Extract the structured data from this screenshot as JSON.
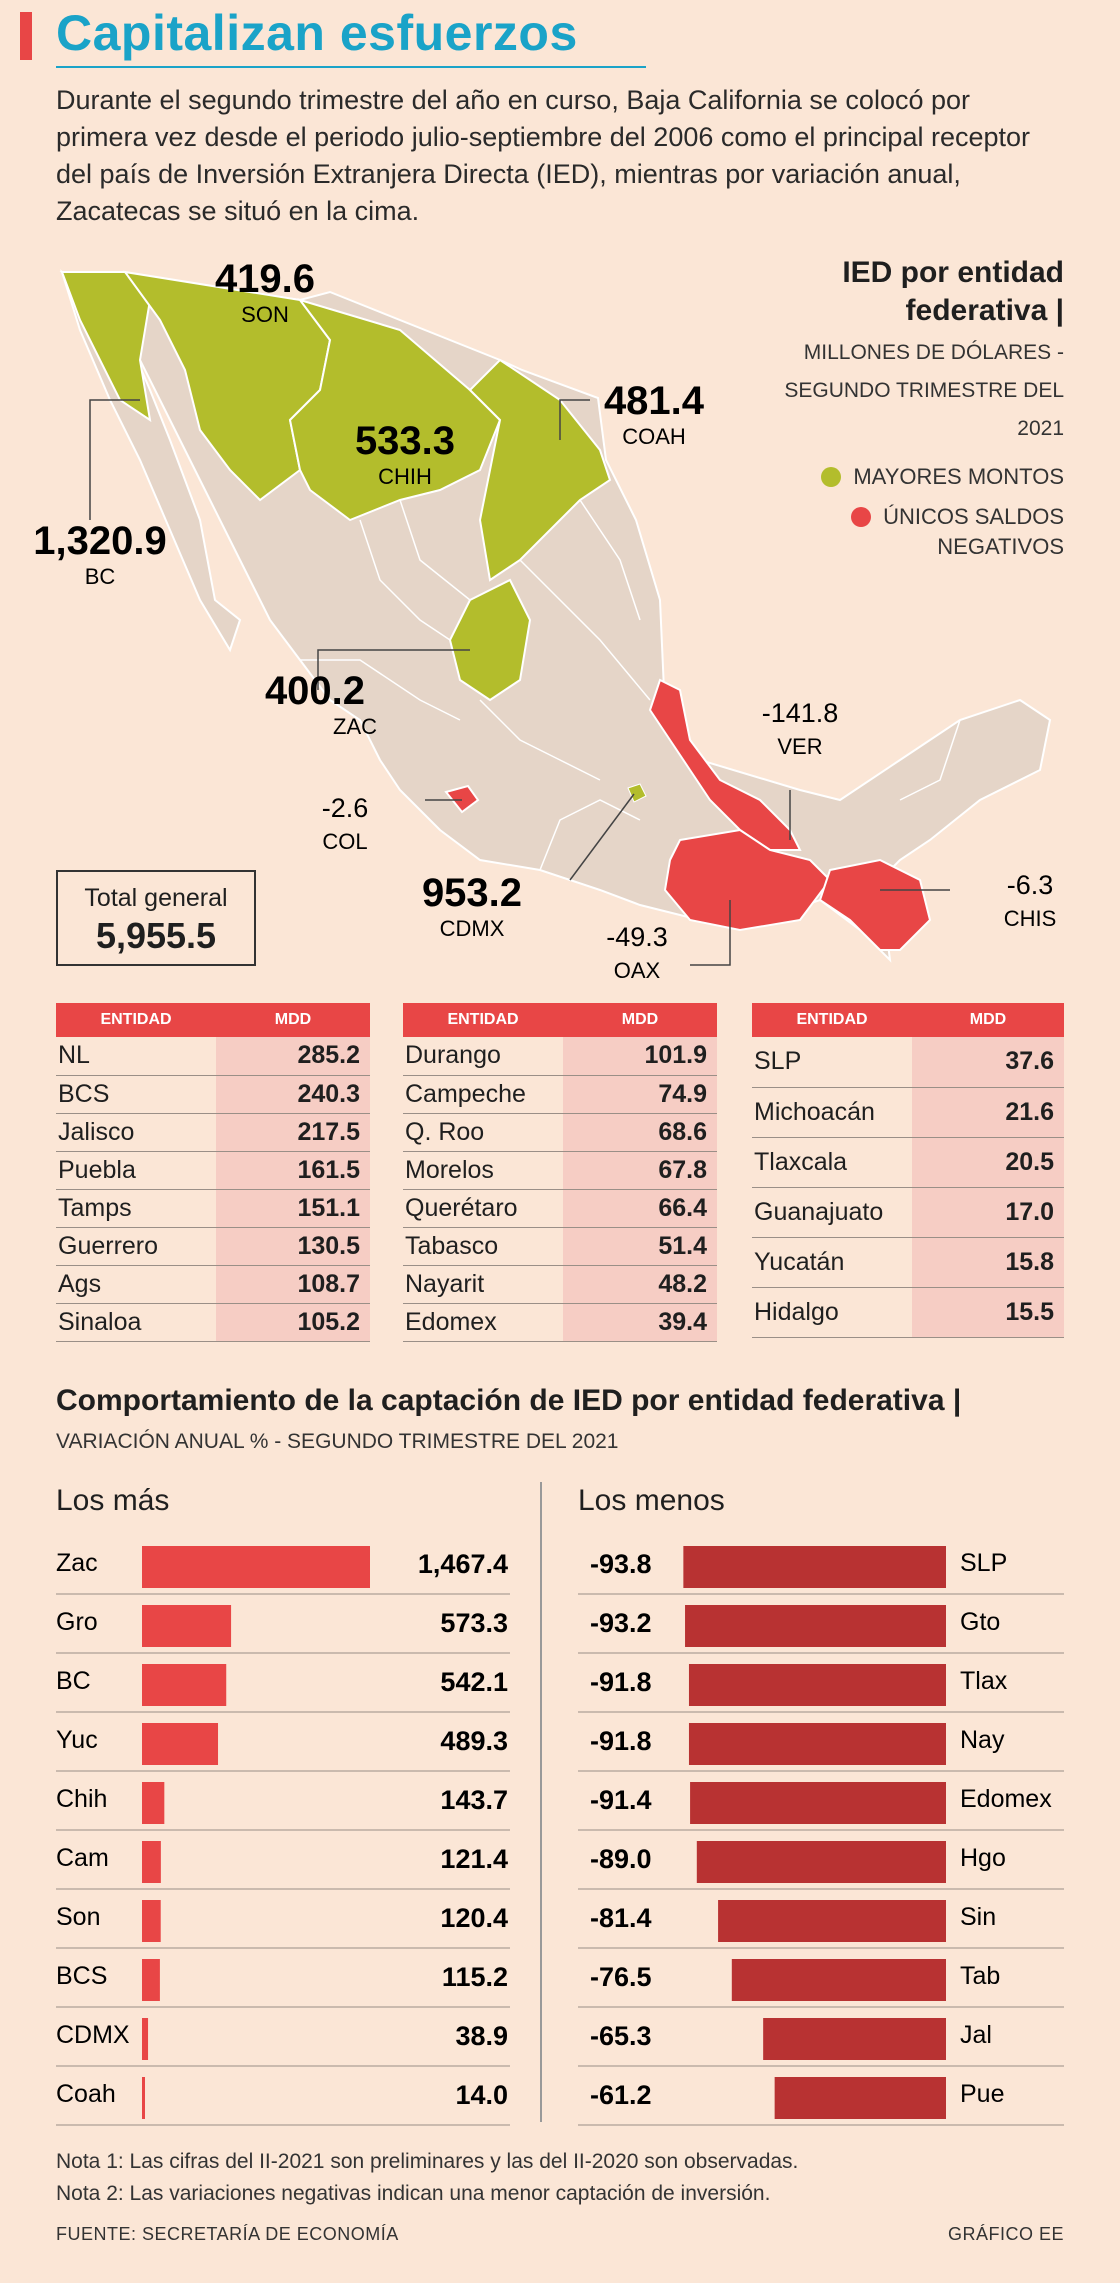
{
  "header": {
    "title": "Capitalizan esfuerzos",
    "intro": "Durante el segundo trimestre del año en curso, Baja California se colocó por primera vez desde el periodo julio-septiembre del 2006 como el principal receptor del país de Inversión Extranjera Directa (IED), mientras por variación anual, Zacatecas se situó en la cima."
  },
  "colors": {
    "accent": "#1aa3c8",
    "green": "#b3bd2c",
    "red": "#e84646",
    "land": "#e5d5c8",
    "dark_red": "#b83232"
  },
  "map": {
    "legend_title": "IED por entidad federativa |",
    "legend_sub": "MILLONES DE DÓLARES - SEGUNDO TRIMESTRE DEL 2021",
    "legend_green": "MAYORES MONTOS",
    "legend_red": "ÚNICOS SALDOS NEGATIVOS",
    "labels": [
      {
        "value": "419.6",
        "state": "SON"
      },
      {
        "value": "533.3",
        "state": "CHIH"
      },
      {
        "value": "481.4",
        "state": "COAH"
      },
      {
        "value": "1,320.9",
        "state": "BC"
      },
      {
        "value": "400.2",
        "state": "ZAC"
      },
      {
        "value": "-141.8",
        "state": "VER"
      },
      {
        "value": "-2.6",
        "state": "COL"
      },
      {
        "value": "953.2",
        "state": "CDMX"
      },
      {
        "value": "-49.3",
        "state": "OAX"
      },
      {
        "value": "-6.3",
        "state": "CHIS"
      }
    ],
    "total_label": "Total general",
    "total_value": "5,955.5"
  },
  "table": {
    "col_entity": "ENTIDAD",
    "col_value": "MDD",
    "groups": [
      [
        [
          "NL",
          "285.2"
        ],
        [
          "BCS",
          "240.3"
        ],
        [
          "Jalisco",
          "217.5"
        ],
        [
          "Puebla",
          "161.5"
        ],
        [
          "Tamps",
          "151.1"
        ],
        [
          "Guerrero",
          "130.5"
        ],
        [
          "Ags",
          "108.7"
        ],
        [
          "Sinaloa",
          "105.2"
        ]
      ],
      [
        [
          "Durango",
          "101.9"
        ],
        [
          "Campeche",
          "74.9"
        ],
        [
          "Q. Roo",
          "68.6"
        ],
        [
          "Morelos",
          "67.8"
        ],
        [
          "Querétaro",
          "66.4"
        ],
        [
          "Tabasco",
          "51.4"
        ],
        [
          "Nayarit",
          "48.2"
        ],
        [
          "Edomex",
          "39.4"
        ]
      ],
      [
        [
          "SLP",
          "37.6"
        ],
        [
          "Michoacán",
          "21.6"
        ],
        [
          "Tlaxcala",
          "20.5"
        ],
        [
          "Guanajuato",
          "17.0"
        ],
        [
          "Yucatán",
          "15.8"
        ],
        [
          "Hidalgo",
          "15.5"
        ]
      ]
    ]
  },
  "section2": {
    "title": "Comportamiento de la captación de IED por entidad federativa",
    "subtitle": "VARIACIÓN ANUAL % - SEGUNDO TRIMESTRE DEL 2021",
    "left_title": "Los más",
    "right_title": "Los menos"
  },
  "chart_data": [
    {
      "type": "bar",
      "title": "Los más",
      "categories": [
        "Zac",
        "Gro",
        "BC",
        "Yuc",
        "Chih",
        "Cam",
        "Son",
        "BCS",
        "CDMX",
        "Coah"
      ],
      "values": [
        1467.4,
        573.3,
        542.1,
        489.3,
        143.7,
        121.4,
        120.4,
        115.2,
        38.9,
        14.0
      ],
      "labels": [
        "1,467.4",
        "573.3",
        "542.1",
        "489.3",
        "143.7",
        "121.4",
        "120.4",
        "115.2",
        "38.9",
        "14.0"
      ]
    },
    {
      "type": "bar",
      "title": "Los menos",
      "categories": [
        "SLP",
        "Gto",
        "Tlax",
        "Nay",
        "Edomex",
        "Hgo",
        "Sin",
        "Tab",
        "Jal",
        "Pue"
      ],
      "values": [
        -93.8,
        -93.2,
        -91.8,
        -91.8,
        -91.4,
        -89.0,
        -81.4,
        -76.5,
        -65.3,
        -61.2
      ],
      "labels": [
        "-93.8",
        "-93.2",
        "-91.8",
        "-91.8",
        "-91.4",
        "-89.0",
        "-81.4",
        "-76.5",
        "-65.3",
        "-61.2"
      ]
    }
  ],
  "notes": {
    "note1": "Nota 1: Las cifras del II-2021 son preliminares y las del II-2020 son observadas.",
    "note2": "Nota 2: Las variaciones negativas indican una menor captación de inversión.",
    "source": "FUENTE: SECRETARÍA DE ECONOMÍA",
    "credit": "GRÁFICO EE"
  }
}
